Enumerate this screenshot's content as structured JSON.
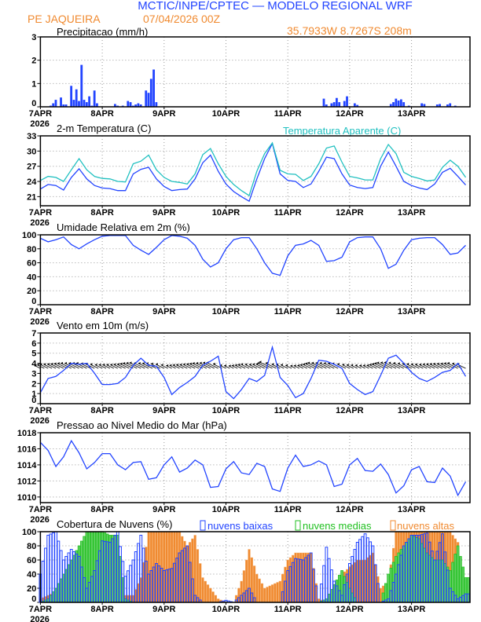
{
  "header": {
    "title": "MCTIC/INPE/CPTEC — MODELO REGIONAL WRF",
    "station": "PE JAQUEIRA",
    "run": "07/04/2026 00Z",
    "location": "35.7933W 8.7267S 208m"
  },
  "colors": {
    "blue": "#2244ff",
    "cyan": "#20c0c0",
    "green": "#20c020",
    "orange": "#f08a30"
  },
  "x_axis": {
    "labels": [
      "7APR",
      "8APR",
      "9APR",
      "10APR",
      "11APR",
      "12APR",
      "13APR"
    ],
    "year": "2026",
    "step_hours": 3
  },
  "chart_data": [
    {
      "id": "precip",
      "type": "bar",
      "title": "Precipitacao (mm/h)",
      "ylim": [
        0,
        3
      ],
      "yticks": [
        0,
        1,
        2,
        3
      ],
      "xlabel": "",
      "ylabel": "",
      "grid": true,
      "hours": [
        4,
        5,
        6,
        8,
        9,
        10,
        12,
        13,
        14,
        15,
        16,
        17,
        18,
        19,
        20,
        21,
        22,
        29,
        30,
        32,
        34,
        35,
        36,
        37,
        38,
        39,
        41,
        42,
        43,
        44,
        45,
        110,
        111,
        113,
        114,
        115,
        116,
        118,
        119,
        122,
        123,
        136,
        137,
        138,
        139,
        140,
        141,
        143,
        148,
        149,
        154,
        155,
        158,
        159,
        161
      ],
      "values": [
        0.05,
        0.15,
        0.3,
        0.4,
        0.1,
        0.1,
        0.9,
        0.3,
        0.75,
        0.25,
        1.8,
        0.3,
        0.2,
        0.45,
        0.05,
        0.7,
        0.15,
        0.12,
        0.05,
        0.05,
        0.25,
        0.2,
        0.05,
        0.1,
        0.15,
        0.1,
        0.7,
        0.6,
        1.2,
        1.6,
        0.2,
        0.35,
        0.1,
        0.15,
        0.2,
        0.38,
        0.2,
        0.25,
        0.45,
        0.15,
        0.08,
        0.12,
        0.2,
        0.35,
        0.27,
        0.32,
        0.2,
        0.05,
        0.15,
        0.12,
        0.1,
        0.12,
        0.1,
        0.15,
        0.05
      ]
    },
    {
      "id": "temp",
      "type": "line",
      "title": "2-m Temperatura (C)",
      "ylim": [
        19.2,
        33
      ],
      "yticks": [
        21,
        24,
        27,
        30,
        33
      ],
      "grid": true,
      "series": [
        {
          "name": "Temperatura 2m",
          "color": "#2244ff",
          "values": [
            22.5,
            23.4,
            23.2,
            22.3,
            24.8,
            26.5,
            24.5,
            23.2,
            22.7,
            22.6,
            22.2,
            22.2,
            25.5,
            26.4,
            26.8,
            24.5,
            23.0,
            22.2,
            22.4,
            22.5,
            24.5,
            27.7,
            29.2,
            26.0,
            23.5,
            22.0,
            21.0,
            20.1,
            24.5,
            28.5,
            31.5,
            25.5,
            24.2,
            24.0,
            22.8,
            23.5,
            26.0,
            28.8,
            28.5,
            25.5,
            23.3,
            22.8,
            22.6,
            22.8,
            27.0,
            29.8,
            27.0,
            24.0,
            23.2,
            22.7,
            22.4,
            23.5,
            25.8,
            26.6,
            25.0,
            23.3
          ]
        },
        {
          "name": "Temperatura Aparente (C)",
          "color": "#20c0c0",
          "values": [
            24.2,
            25.0,
            24.8,
            24.0,
            26.3,
            28.5,
            26.3,
            25.0,
            24.6,
            24.5,
            24.0,
            23.9,
            27.5,
            28.0,
            29.2,
            26.3,
            24.8,
            24.0,
            23.8,
            23.5,
            25.5,
            29.3,
            30.5,
            27.5,
            25.0,
            23.4,
            22.2,
            21.2,
            26.0,
            29.5,
            31.6,
            26.2,
            25.5,
            25.4,
            24.2,
            25.0,
            27.5,
            30.6,
            31.0,
            27.8,
            25.0,
            24.7,
            24.3,
            24.3,
            28.5,
            31.3,
            29.5,
            25.8,
            25.0,
            24.6,
            24.1,
            24.3,
            26.8,
            28.2,
            27.0,
            24.8
          ]
        }
      ]
    },
    {
      "id": "rh",
      "type": "line",
      "title": "Umidade Relativa em 2m (%)",
      "ylim": [
        0,
        100
      ],
      "yticks": [
        0,
        20,
        40,
        60,
        80,
        100
      ],
      "grid": true,
      "series": [
        {
          "name": "Umidade",
          "color": "#2244ff",
          "values": [
            95,
            90,
            93,
            97,
            86,
            80,
            87,
            93,
            98,
            99,
            99,
            99,
            85,
            78,
            72,
            82,
            93,
            99,
            98,
            95,
            85,
            65,
            54,
            60,
            80,
            93,
            96,
            96,
            80,
            60,
            45,
            42,
            70,
            85,
            87,
            92,
            85,
            62,
            63,
            68,
            90,
            96,
            97,
            97,
            80,
            52,
            58,
            78,
            93,
            95,
            96,
            96,
            86,
            72,
            74,
            85
          ]
        }
      ]
    },
    {
      "id": "wind",
      "type": "line",
      "title": "Vento em 10m (m/s)",
      "ylim": [
        0,
        7
      ],
      "yticks": [
        0,
        1,
        2,
        3,
        4,
        5,
        6,
        7
      ],
      "grid": true,
      "vector_base": 3.5,
      "vector_direction_deg": 115,
      "series": [
        {
          "name": "Vento",
          "color": "#2244ff",
          "values": [
            1.1,
            2.5,
            2.7,
            3.3,
            4.0,
            3.9,
            4.0,
            3.0,
            1.9,
            1.9,
            2.0,
            2.6,
            3.8,
            4.5,
            3.8,
            3.7,
            2.6,
            0.9,
            1.6,
            2.1,
            2.7,
            3.8,
            4.2,
            4.7,
            1.2,
            0.5,
            1.4,
            2.5,
            2.2,
            2.8,
            5.6,
            2.6,
            1.8,
            0.6,
            1.0,
            2.5,
            4.3,
            4.2,
            3.9,
            3.5,
            2.0,
            1.4,
            0.9,
            1.2,
            2.8,
            4.5,
            4.8,
            4.0,
            3.1,
            2.5,
            2.2,
            2.6,
            3.1,
            3.3,
            4.0,
            2.7
          ]
        }
      ]
    },
    {
      "id": "pres",
      "type": "line",
      "title": "Pressao ao Nivel Medio do Mar (hPa)",
      "ylim": [
        1009.3,
        1018
      ],
      "yticks": [
        1010,
        1012,
        1014,
        1016,
        1018
      ],
      "grid": true,
      "series": [
        {
          "name": "Pressao",
          "color": "#2244ff",
          "values": [
            1016.8,
            1015.8,
            1013.8,
            1015.0,
            1017.0,
            1015.5,
            1013.5,
            1014.3,
            1015.4,
            1015.4,
            1014.0,
            1013.4,
            1014.3,
            1014.4,
            1012.2,
            1012.4,
            1014.0,
            1015.0,
            1013.1,
            1013.6,
            1014.6,
            1014.0,
            1011.2,
            1011.3,
            1013.5,
            1014.4,
            1013.0,
            1012.8,
            1014.2,
            1013.8,
            1011.0,
            1010.7,
            1013.6,
            1015.2,
            1013.8,
            1014.0,
            1014.5,
            1014.0,
            1011.3,
            1011.6,
            1014.0,
            1014.8,
            1013.3,
            1013.2,
            1014.1,
            1012.8,
            1010.5,
            1011.4,
            1013.4,
            1013.8,
            1011.9,
            1011.8,
            1013.6,
            1012.6,
            1010.2,
            1011.9
          ]
        }
      ]
    },
    {
      "id": "cloud",
      "type": "bar",
      "title": "Cobertura de Nuvens (%)",
      "ylim": [
        0,
        100
      ],
      "yticks": [
        0,
        20,
        40,
        60,
        80,
        100
      ],
      "grid": true,
      "series": [
        {
          "name": "nuvens altas",
          "color": "#f08a30",
          "values": [
            5,
            10,
            15,
            15,
            40,
            75,
            100,
            100,
            100,
            95,
            60,
            10,
            10,
            35,
            100,
            100,
            100,
            100,
            100,
            80,
            95,
            35,
            20,
            5,
            0,
            0,
            30,
            75,
            40,
            20,
            25,
            30,
            60,
            70,
            70,
            70,
            5,
            0,
            25,
            40,
            50,
            60,
            60,
            70,
            20,
            30,
            100,
            100,
            100,
            100,
            100,
            100,
            100,
            100,
            85,
            0
          ]
        },
        {
          "name": "nuvens medias",
          "color": "#20c020",
          "values": [
            0,
            5,
            20,
            40,
            60,
            80,
            100,
            100,
            100,
            95,
            95,
            5,
            0,
            0,
            0,
            0,
            0,
            0,
            0,
            0,
            0,
            0,
            0,
            0,
            0,
            0,
            0,
            0,
            0,
            0,
            0,
            0,
            0,
            0,
            0,
            0,
            0,
            5,
            25,
            45,
            20,
            0,
            0,
            0,
            0,
            40,
            65,
            80,
            95,
            90,
            70,
            60,
            60,
            45,
            80,
            35
          ]
        },
        {
          "name": "nuvens baixas",
          "color": "#2244ff",
          "values": [
            40,
            95,
            100,
            60,
            75,
            65,
            20,
            45,
            87,
            85,
            100,
            37,
            60,
            95,
            40,
            55,
            45,
            48,
            70,
            80,
            10,
            0,
            0,
            0,
            3,
            0,
            10,
            20,
            0,
            0,
            0,
            0,
            45,
            62,
            60,
            70,
            0,
            78,
            30,
            10,
            55,
            85,
            97,
            80,
            0,
            5,
            40,
            80,
            95,
            95,
            98,
            60,
            97,
            20,
            5,
            12
          ]
        }
      ]
    }
  ]
}
